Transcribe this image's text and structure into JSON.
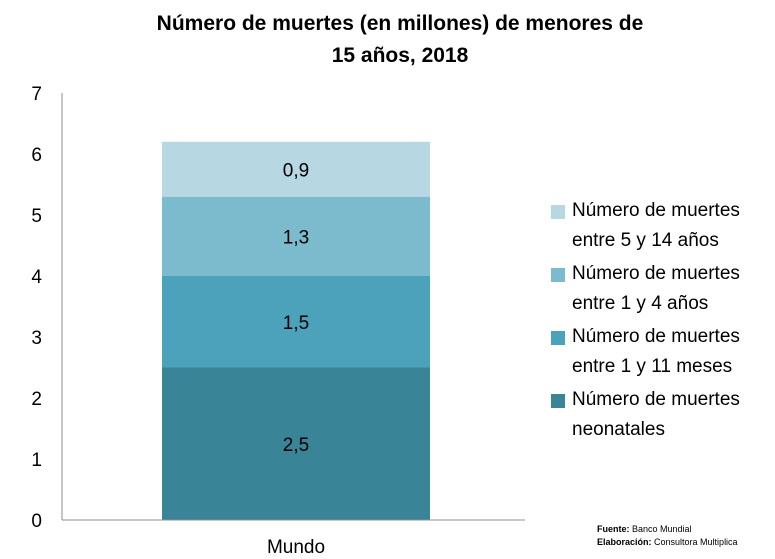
{
  "chart_data": {
    "type": "bar",
    "stacked": true,
    "title_line1": "Número de muertes (en millones) de menores de",
    "title_line2": "15 años, 2018",
    "categories": [
      "Mundo"
    ],
    "ylim": [
      0,
      7
    ],
    "yticks": [
      0,
      1,
      2,
      3,
      4,
      5,
      6,
      7
    ],
    "grid": false,
    "legend_position": "right",
    "series": [
      {
        "name": "Número de muertes neonatales",
        "values": [
          2.5
        ],
        "label": "2,5",
        "color": "#3A8497"
      },
      {
        "name": "Número de muertes entre 1 y 11 meses",
        "values": [
          1.5
        ],
        "label": "1,5",
        "color": "#4CA2BA"
      },
      {
        "name": "Número de muertes entre 1 y 4 años",
        "values": [
          1.3
        ],
        "label": "1,3",
        "color": "#7CBACE"
      },
      {
        "name": "Número de muertes entre 5 y 14 años",
        "values": [
          0.9
        ],
        "label": "0,9",
        "color": "#B7D7E2"
      }
    ]
  },
  "source": {
    "fuente_label": "Fuente:",
    "fuente_value": "Banco Mundial",
    "elaboracion_label": "Elaboración:",
    "elaboracion_value": "Consultora Multiplica"
  }
}
